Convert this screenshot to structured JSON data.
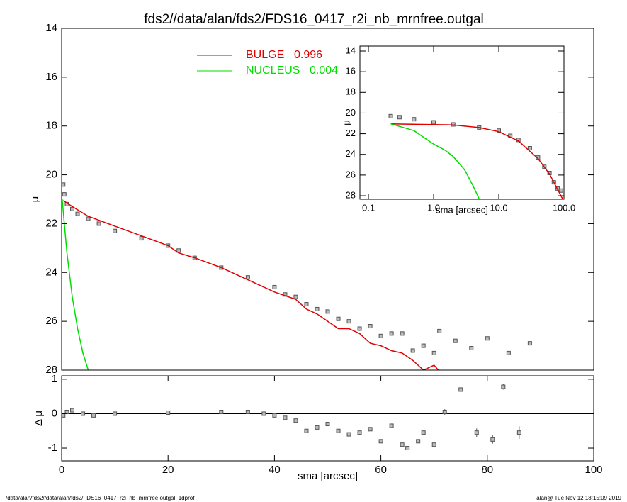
{
  "title": "fds2//data/alan/fds2/FDS16_0417_r2i_nb_mrnfree.outgal",
  "footer_left": "/data/alan/fds2//data/alan/fds2/FDS16_0417_r2i_nb_mrnfree.outgal_1dprof",
  "footer_right": "alan@  Tue Nov 12 18:15:09 2019",
  "chart_data": [
    {
      "type": "scatter",
      "y_label": "μ",
      "xlim": [
        0,
        100
      ],
      "ylim": [
        28,
        14
      ],
      "yticks": [
        14,
        16,
        18,
        20,
        22,
        24,
        26,
        28
      ],
      "legend": "upper center",
      "series": [
        {
          "style": "squares",
          "color": "#555555",
          "x": [
            0.3,
            0.5,
            1,
            2,
            3,
            5,
            7,
            10,
            15,
            20,
            22,
            25,
            30,
            35,
            40,
            42,
            44,
            46,
            48,
            50,
            52,
            54,
            56,
            58,
            60,
            62,
            64,
            66,
            68,
            70,
            71,
            74,
            77,
            80,
            84,
            88
          ],
          "values": [
            20.4,
            20.8,
            21.2,
            21.4,
            21.6,
            21.8,
            22.0,
            22.3,
            22.6,
            22.9,
            23.1,
            23.4,
            23.8,
            24.2,
            24.6,
            24.9,
            25.0,
            25.3,
            25.5,
            25.6,
            25.9,
            26.0,
            26.3,
            26.2,
            26.6,
            26.5,
            26.5,
            27.2,
            27.0,
            27.3,
            26.4,
            26.8,
            27.1,
            26.7,
            27.3,
            26.9
          ]
        },
        {
          "name": "BULGE",
          "fraction": 0.996,
          "style": "line",
          "color": "#e00000",
          "x": [
            0.3,
            2,
            5,
            10,
            15,
            20,
            22,
            25,
            30,
            35,
            40,
            44,
            46,
            48,
            50,
            52,
            54,
            56,
            58,
            60,
            62,
            64,
            66,
            68,
            70,
            72
          ],
          "values": [
            21.05,
            21.3,
            21.7,
            22.1,
            22.5,
            22.9,
            23.2,
            23.4,
            23.8,
            24.3,
            24.8,
            25.1,
            25.5,
            25.7,
            26.0,
            26.3,
            26.3,
            26.5,
            26.9,
            27.0,
            27.2,
            27.3,
            27.6,
            28.0,
            27.8,
            28.3
          ]
        },
        {
          "name": "NUCLEUS",
          "fraction": 0.004,
          "style": "line",
          "color": "#00dd00",
          "x": [
            0.1,
            0.5,
            1,
            2,
            3,
            4,
            5
          ],
          "values": [
            21.0,
            22.0,
            23.2,
            25.0,
            26.3,
            27.3,
            28.0
          ]
        }
      ]
    },
    {
      "type": "scatter",
      "x_label": "sma [arcsec]",
      "y_label": "Δ μ",
      "xlim": [
        0,
        100
      ],
      "xticks": [
        0,
        20,
        40,
        60,
        80,
        100
      ],
      "ylim": [
        -1.37,
        1.1
      ],
      "yticks": [
        -1,
        0,
        1
      ],
      "zero_line": 0,
      "series": [
        {
          "style": "squares",
          "color": "#555555",
          "x": [
            0.3,
            1,
            2,
            4,
            6,
            10,
            20,
            30,
            35,
            38,
            40,
            42,
            44,
            46,
            48,
            50,
            52,
            54,
            56,
            58,
            60,
            62,
            64,
            65,
            67,
            68,
            70,
            72,
            75,
            78,
            81,
            83,
            86
          ],
          "values": [
            -0.05,
            0.05,
            0.1,
            0,
            -0.05,
            0,
            0.03,
            0.05,
            0.05,
            0,
            -0.05,
            -0.12,
            -0.2,
            -0.5,
            -0.4,
            -0.3,
            -0.5,
            -0.6,
            -0.55,
            -0.45,
            -0.8,
            -0.35,
            -0.9,
            -1.0,
            -0.8,
            -0.55,
            -0.9,
            0.05,
            0.7,
            -0.55,
            -0.75,
            0.78,
            -0.55
          ],
          "errors": [
            0.01,
            0.01,
            0.01,
            0.01,
            0.01,
            0.01,
            0.01,
            0.01,
            0.01,
            0.01,
            0.02,
            0.02,
            0.02,
            0.02,
            0.02,
            0.02,
            0.02,
            0.02,
            0.02,
            0.02,
            0.05,
            0.05,
            0.05,
            0.05,
            0.05,
            0.05,
            0.05,
            0.08,
            0.06,
            0.12,
            0.12,
            0.08,
            0.18
          ]
        }
      ]
    },
    {
      "type": "scatter",
      "x_label": "sma [arcsec]",
      "y_label": "μ",
      "xlog": true,
      "xlim": [
        0.074,
        100
      ],
      "xticks": [
        0.1,
        {
          "value": 1,
          "label": "1.0"
        },
        {
          "value": 10,
          "label": "10.0"
        },
        {
          "value": 100,
          "label": "100.0"
        }
      ],
      "ylim": [
        28.34,
        13.52
      ],
      "yticks": [
        14,
        16,
        18,
        20,
        22,
        24,
        26,
        28
      ],
      "series": [
        {
          "style": "squares",
          "color": "#555555",
          "x": [
            0.22,
            0.3,
            0.5,
            1,
            2,
            5,
            10,
            15,
            20,
            30,
            40,
            50,
            60,
            70,
            80,
            90
          ],
          "values": [
            20.3,
            20.4,
            20.6,
            20.9,
            21.1,
            21.4,
            21.7,
            22.2,
            22.6,
            23.4,
            24.3,
            25.2,
            25.8,
            26.7,
            27.3,
            27.5
          ]
        },
        {
          "style": "line",
          "color": "#e00000",
          "x": [
            0.22,
            2,
            5,
            10,
            20,
            40,
            60,
            80,
            95
          ],
          "values": [
            21.05,
            21.15,
            21.4,
            21.8,
            22.7,
            24.4,
            25.9,
            27.4,
            28.3
          ]
        },
        {
          "style": "line",
          "color": "#00dd00",
          "x": [
            0.22,
            0.5,
            1,
            1.5,
            2,
            3,
            4,
            5
          ],
          "values": [
            21.05,
            21.7,
            23.0,
            23.6,
            24.2,
            25.5,
            27.0,
            28.3
          ]
        }
      ]
    }
  ]
}
